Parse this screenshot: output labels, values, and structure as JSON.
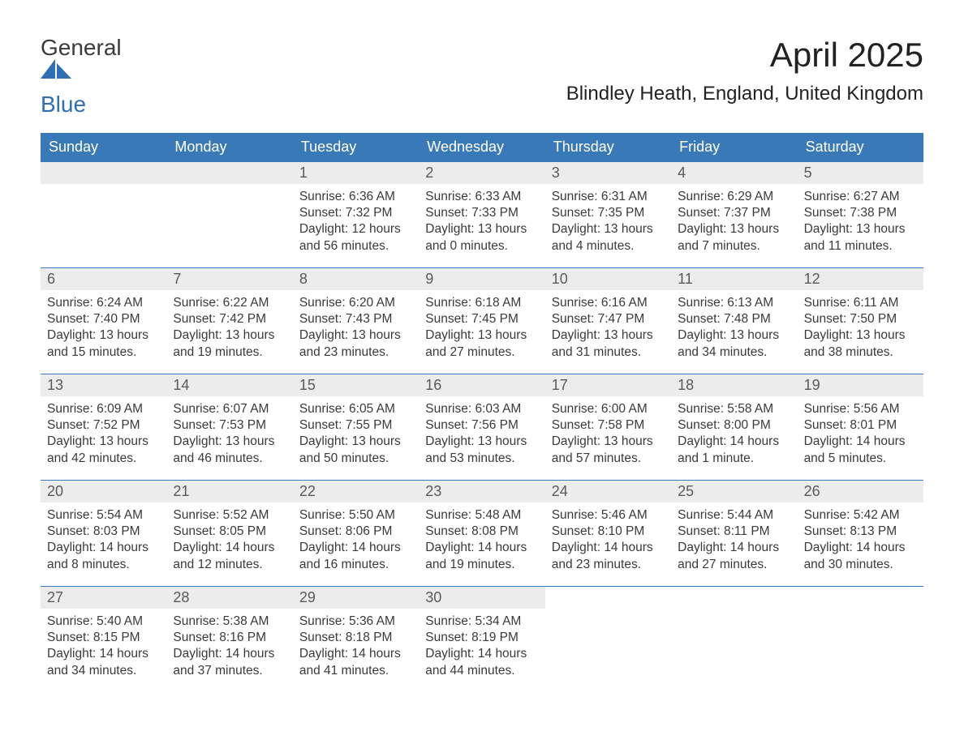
{
  "logo": {
    "top": "General",
    "bottom": "Blue",
    "mark_color": "#2f6fb3"
  },
  "title": "April 2025",
  "location": "Blindley Heath, England, United Kingdom",
  "colors": {
    "header_bg": "#3a79b7",
    "header_text": "#ffffff",
    "daynum_bg": "#ececec",
    "daynum_text": "#5a5a5a",
    "body_text": "#3a3a3a",
    "week_rule": "#3a79b7",
    "logo_accent": "#2f6fb3"
  },
  "typography": {
    "title_fontsize": 42,
    "location_fontsize": 24,
    "dow_fontsize": 18,
    "daynum_fontsize": 18,
    "body_fontsize": 15.5
  },
  "days_of_week": [
    "Sunday",
    "Monday",
    "Tuesday",
    "Wednesday",
    "Thursday",
    "Friday",
    "Saturday"
  ],
  "weeks": [
    [
      {
        "blank": true
      },
      {
        "blank": true
      },
      {
        "n": "1",
        "sunrise": "Sunrise: 6:36 AM",
        "sunset": "Sunset: 7:32 PM",
        "d1": "Daylight: 12 hours",
        "d2": "and 56 minutes."
      },
      {
        "n": "2",
        "sunrise": "Sunrise: 6:33 AM",
        "sunset": "Sunset: 7:33 PM",
        "d1": "Daylight: 13 hours",
        "d2": "and 0 minutes."
      },
      {
        "n": "3",
        "sunrise": "Sunrise: 6:31 AM",
        "sunset": "Sunset: 7:35 PM",
        "d1": "Daylight: 13 hours",
        "d2": "and 4 minutes."
      },
      {
        "n": "4",
        "sunrise": "Sunrise: 6:29 AM",
        "sunset": "Sunset: 7:37 PM",
        "d1": "Daylight: 13 hours",
        "d2": "and 7 minutes."
      },
      {
        "n": "5",
        "sunrise": "Sunrise: 6:27 AM",
        "sunset": "Sunset: 7:38 PM",
        "d1": "Daylight: 13 hours",
        "d2": "and 11 minutes."
      }
    ],
    [
      {
        "n": "6",
        "sunrise": "Sunrise: 6:24 AM",
        "sunset": "Sunset: 7:40 PM",
        "d1": "Daylight: 13 hours",
        "d2": "and 15 minutes."
      },
      {
        "n": "7",
        "sunrise": "Sunrise: 6:22 AM",
        "sunset": "Sunset: 7:42 PM",
        "d1": "Daylight: 13 hours",
        "d2": "and 19 minutes."
      },
      {
        "n": "8",
        "sunrise": "Sunrise: 6:20 AM",
        "sunset": "Sunset: 7:43 PM",
        "d1": "Daylight: 13 hours",
        "d2": "and 23 minutes."
      },
      {
        "n": "9",
        "sunrise": "Sunrise: 6:18 AM",
        "sunset": "Sunset: 7:45 PM",
        "d1": "Daylight: 13 hours",
        "d2": "and 27 minutes."
      },
      {
        "n": "10",
        "sunrise": "Sunrise: 6:16 AM",
        "sunset": "Sunset: 7:47 PM",
        "d1": "Daylight: 13 hours",
        "d2": "and 31 minutes."
      },
      {
        "n": "11",
        "sunrise": "Sunrise: 6:13 AM",
        "sunset": "Sunset: 7:48 PM",
        "d1": "Daylight: 13 hours",
        "d2": "and 34 minutes."
      },
      {
        "n": "12",
        "sunrise": "Sunrise: 6:11 AM",
        "sunset": "Sunset: 7:50 PM",
        "d1": "Daylight: 13 hours",
        "d2": "and 38 minutes."
      }
    ],
    [
      {
        "n": "13",
        "sunrise": "Sunrise: 6:09 AM",
        "sunset": "Sunset: 7:52 PM",
        "d1": "Daylight: 13 hours",
        "d2": "and 42 minutes."
      },
      {
        "n": "14",
        "sunrise": "Sunrise: 6:07 AM",
        "sunset": "Sunset: 7:53 PM",
        "d1": "Daylight: 13 hours",
        "d2": "and 46 minutes."
      },
      {
        "n": "15",
        "sunrise": "Sunrise: 6:05 AM",
        "sunset": "Sunset: 7:55 PM",
        "d1": "Daylight: 13 hours",
        "d2": "and 50 minutes."
      },
      {
        "n": "16",
        "sunrise": "Sunrise: 6:03 AM",
        "sunset": "Sunset: 7:56 PM",
        "d1": "Daylight: 13 hours",
        "d2": "and 53 minutes."
      },
      {
        "n": "17",
        "sunrise": "Sunrise: 6:00 AM",
        "sunset": "Sunset: 7:58 PM",
        "d1": "Daylight: 13 hours",
        "d2": "and 57 minutes."
      },
      {
        "n": "18",
        "sunrise": "Sunrise: 5:58 AM",
        "sunset": "Sunset: 8:00 PM",
        "d1": "Daylight: 14 hours",
        "d2": "and 1 minute."
      },
      {
        "n": "19",
        "sunrise": "Sunrise: 5:56 AM",
        "sunset": "Sunset: 8:01 PM",
        "d1": "Daylight: 14 hours",
        "d2": "and 5 minutes."
      }
    ],
    [
      {
        "n": "20",
        "sunrise": "Sunrise: 5:54 AM",
        "sunset": "Sunset: 8:03 PM",
        "d1": "Daylight: 14 hours",
        "d2": "and 8 minutes."
      },
      {
        "n": "21",
        "sunrise": "Sunrise: 5:52 AM",
        "sunset": "Sunset: 8:05 PM",
        "d1": "Daylight: 14 hours",
        "d2": "and 12 minutes."
      },
      {
        "n": "22",
        "sunrise": "Sunrise: 5:50 AM",
        "sunset": "Sunset: 8:06 PM",
        "d1": "Daylight: 14 hours",
        "d2": "and 16 minutes."
      },
      {
        "n": "23",
        "sunrise": "Sunrise: 5:48 AM",
        "sunset": "Sunset: 8:08 PM",
        "d1": "Daylight: 14 hours",
        "d2": "and 19 minutes."
      },
      {
        "n": "24",
        "sunrise": "Sunrise: 5:46 AM",
        "sunset": "Sunset: 8:10 PM",
        "d1": "Daylight: 14 hours",
        "d2": "and 23 minutes."
      },
      {
        "n": "25",
        "sunrise": "Sunrise: 5:44 AM",
        "sunset": "Sunset: 8:11 PM",
        "d1": "Daylight: 14 hours",
        "d2": "and 27 minutes."
      },
      {
        "n": "26",
        "sunrise": "Sunrise: 5:42 AM",
        "sunset": "Sunset: 8:13 PM",
        "d1": "Daylight: 14 hours",
        "d2": "and 30 minutes."
      }
    ],
    [
      {
        "n": "27",
        "sunrise": "Sunrise: 5:40 AM",
        "sunset": "Sunset: 8:15 PM",
        "d1": "Daylight: 14 hours",
        "d2": "and 34 minutes."
      },
      {
        "n": "28",
        "sunrise": "Sunrise: 5:38 AM",
        "sunset": "Sunset: 8:16 PM",
        "d1": "Daylight: 14 hours",
        "d2": "and 37 minutes."
      },
      {
        "n": "29",
        "sunrise": "Sunrise: 5:36 AM",
        "sunset": "Sunset: 8:18 PM",
        "d1": "Daylight: 14 hours",
        "d2": "and 41 minutes."
      },
      {
        "n": "30",
        "sunrise": "Sunrise: 5:34 AM",
        "sunset": "Sunset: 8:19 PM",
        "d1": "Daylight: 14 hours",
        "d2": "and 44 minutes."
      },
      {
        "blank": true,
        "no_stripe": true
      },
      {
        "blank": true,
        "no_stripe": true
      },
      {
        "blank": true,
        "no_stripe": true
      }
    ]
  ]
}
